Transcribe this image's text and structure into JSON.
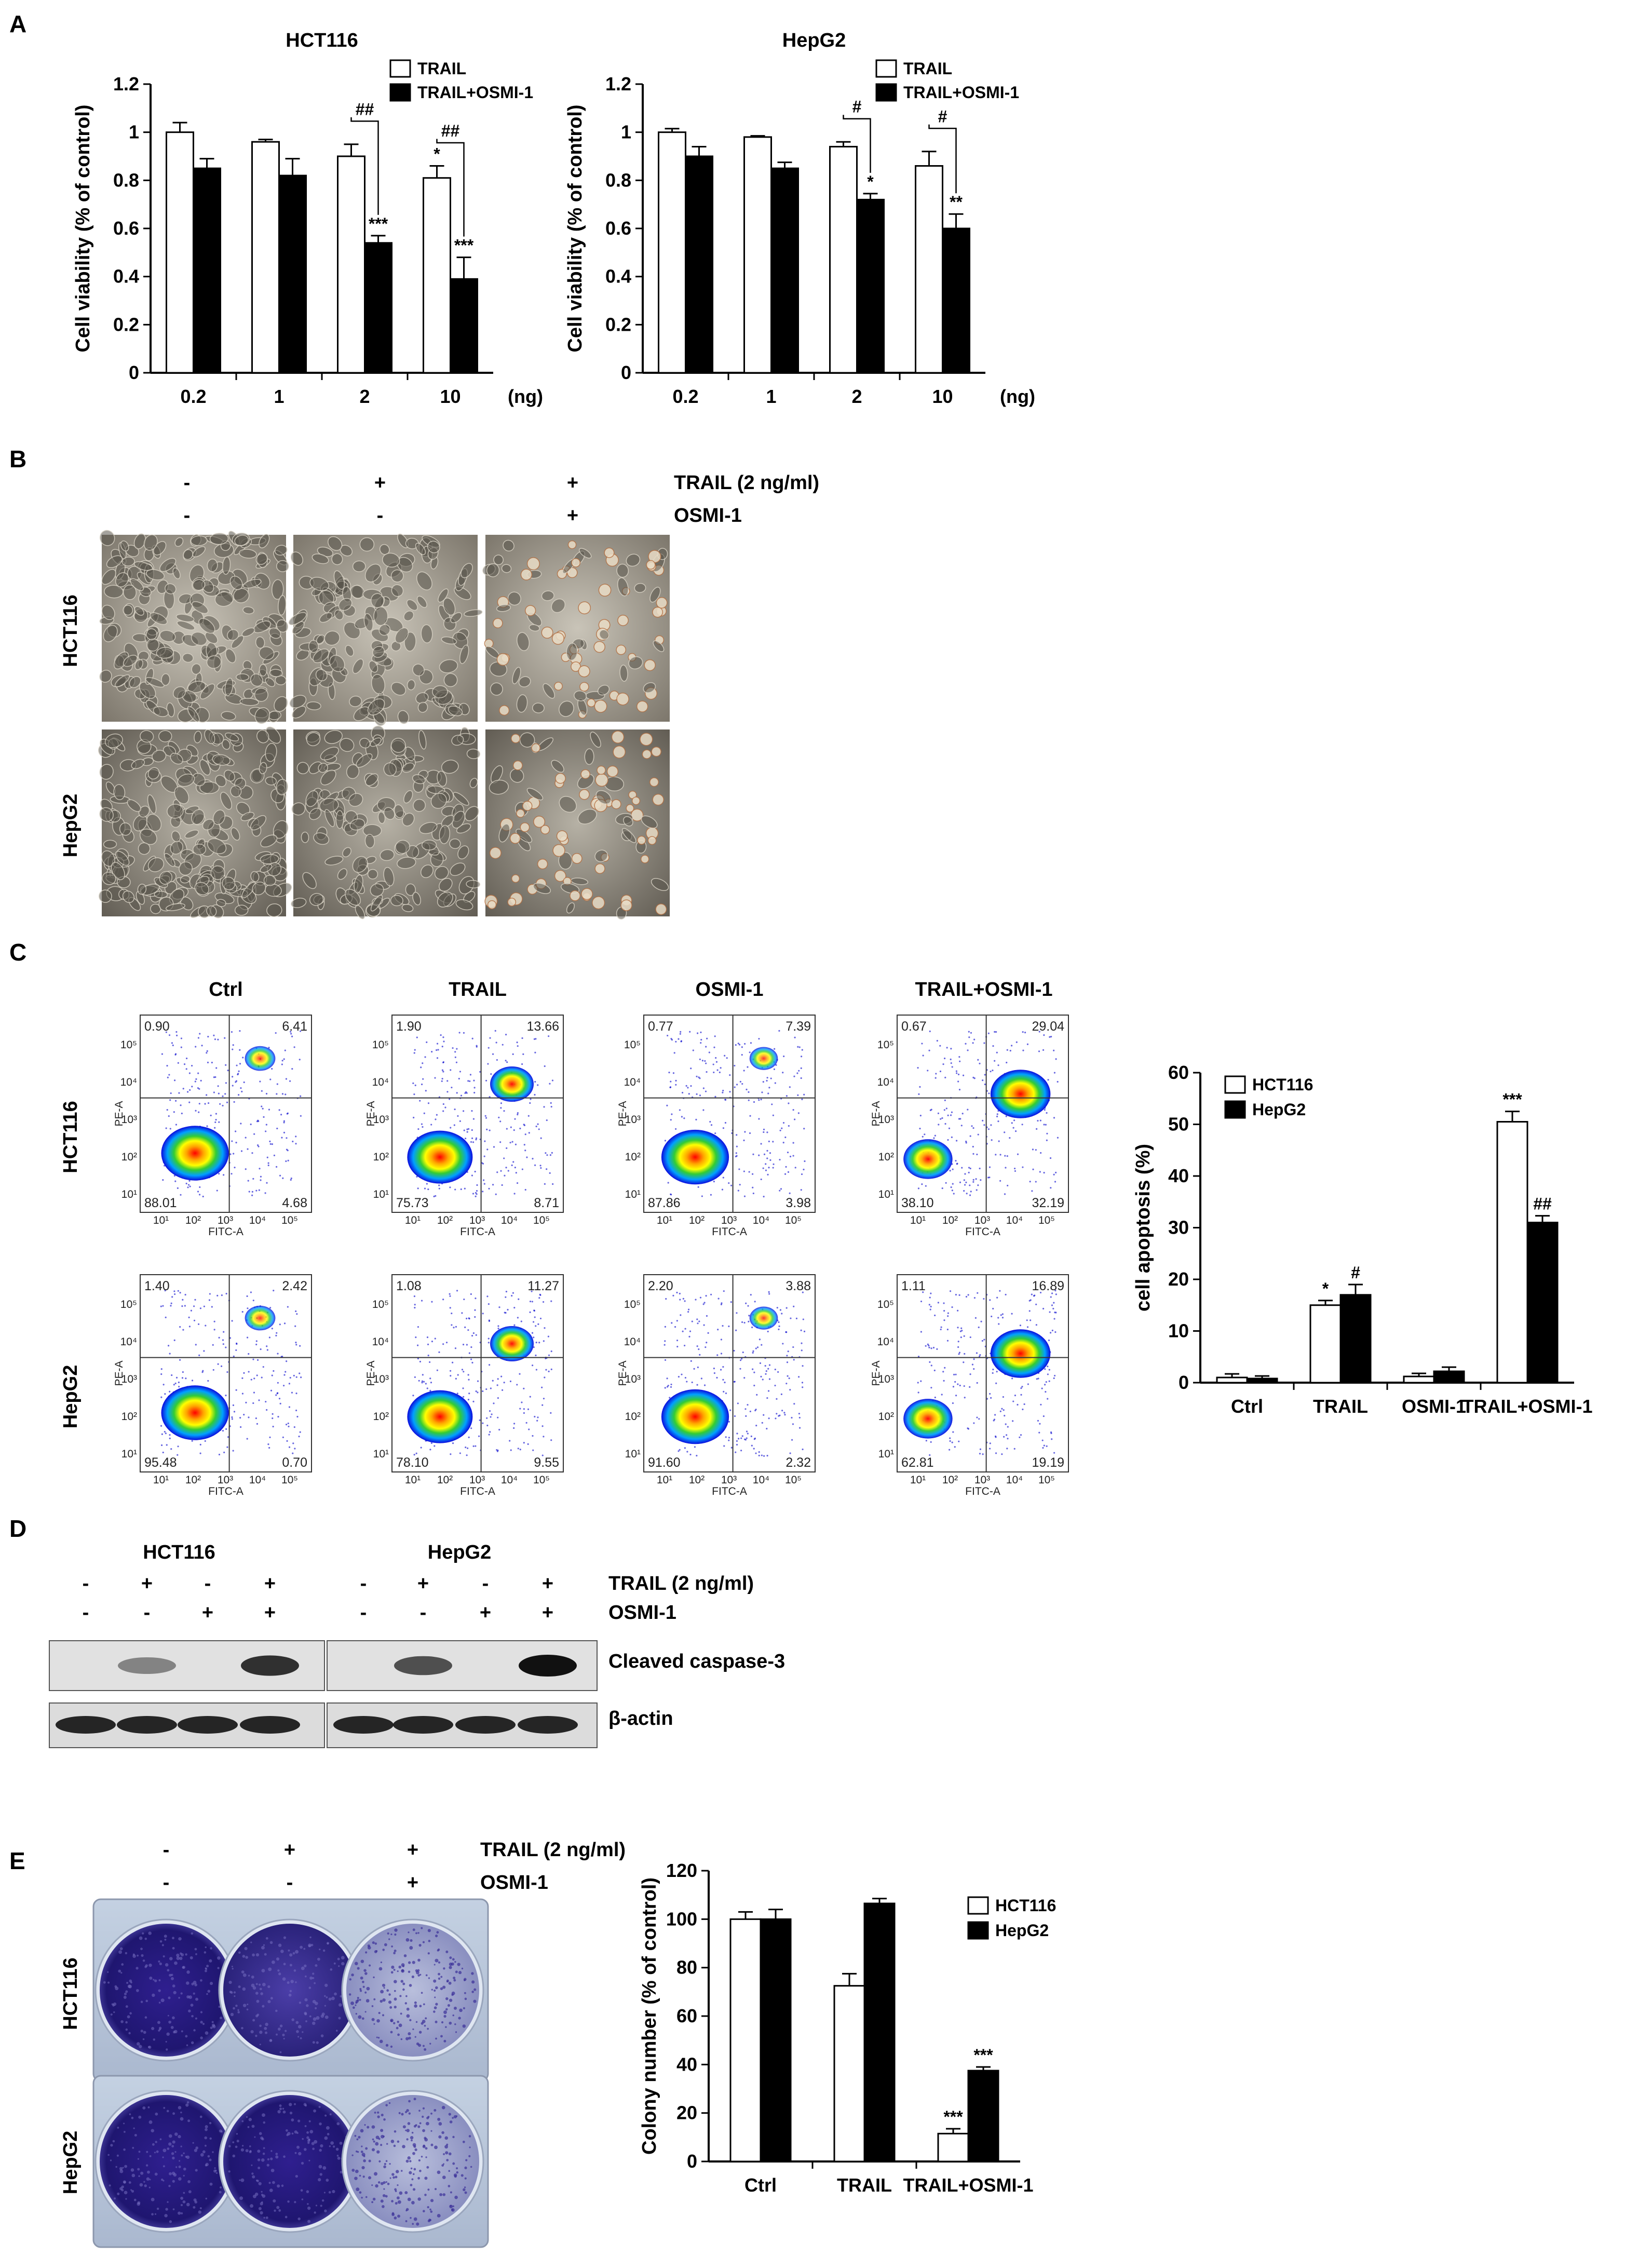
{
  "panel_labels": [
    "A",
    "B",
    "C",
    "D",
    "E"
  ],
  "panel_a": {
    "charts": [
      {
        "type": "bar",
        "title": "HCT116",
        "ylabel": "Cell viability (% of control)",
        "xunit": "(ng)",
        "categories": [
          "0.2",
          "1",
          "2",
          "10"
        ],
        "yticks": [
          "0",
          "0.2",
          "0.4",
          "0.6",
          "0.8",
          "1",
          "1.2"
        ],
        "ylim": [
          0,
          1.2
        ],
        "series": [
          {
            "name": "TRAIL",
            "color": "#ffffff",
            "values": [
              1.0,
              0.96,
              0.9,
              0.81
            ],
            "errors": [
              0.04,
              0.01,
              0.05,
              0.05
            ]
          },
          {
            "name": "TRAIL+OSMI-1",
            "color": "#000000",
            "values": [
              0.85,
              0.82,
              0.54,
              0.39
            ],
            "errors": [
              0.04,
              0.07,
              0.03,
              0.09
            ]
          }
        ],
        "annotations": {
          "open": [
            "",
            "",
            "",
            "*"
          ],
          "filled": [
            "",
            "",
            "***",
            "***"
          ],
          "brackets": [
            "",
            "",
            "##",
            "##"
          ]
        }
      },
      {
        "type": "bar",
        "title": "HepG2",
        "ylabel": "Cell viability (% of control)",
        "xunit": "(ng)",
        "categories": [
          "0.2",
          "1",
          "2",
          "10"
        ],
        "yticks": [
          "0",
          "0.2",
          "0.4",
          "0.6",
          "0.8",
          "1",
          "1.2"
        ],
        "ylim": [
          0,
          1.2
        ],
        "series": [
          {
            "name": "TRAIL",
            "color": "#ffffff",
            "values": [
              1.0,
              0.98,
              0.94,
              0.86
            ],
            "errors": [
              0.015,
              0.005,
              0.02,
              0.06
            ]
          },
          {
            "name": "TRAIL+OSMI-1",
            "color": "#000000",
            "values": [
              0.9,
              0.85,
              0.72,
              0.6
            ],
            "errors": [
              0.04,
              0.025,
              0.025,
              0.06
            ]
          }
        ],
        "annotations": {
          "open": [
            "",
            "",
            "",
            ""
          ],
          "filled": [
            "",
            "",
            "*",
            "**"
          ],
          "brackets": [
            "",
            "",
            "#",
            "#"
          ]
        }
      }
    ]
  },
  "panel_b": {
    "treatments": [
      {
        "label": "TRAIL (2 ng/ml)",
        "signs": [
          "-",
          "+",
          "+"
        ]
      },
      {
        "label": "OSMI-1",
        "signs": [
          "-",
          "-",
          "+"
        ]
      }
    ],
    "rows": [
      "HCT116",
      "HepG2"
    ]
  },
  "panel_c": {
    "columns": [
      "Ctrl",
      "TRAIL",
      "OSMI-1",
      "TRAIL+OSMI-1"
    ],
    "rows": [
      {
        "label": "HCT116",
        "quadrants": [
          [
            "0.90",
            "6.41",
            "88.01",
            "4.68"
          ],
          [
            "1.90",
            "13.66",
            "75.73",
            "8.71"
          ],
          [
            "0.77",
            "7.39",
            "87.86",
            "3.98"
          ],
          [
            "0.67",
            "29.04",
            "38.10",
            "32.19"
          ]
        ]
      },
      {
        "label": "HepG2",
        "quadrants": [
          [
            "1.40",
            "2.42",
            "95.48",
            "0.70"
          ],
          [
            "1.08",
            "11.27",
            "78.10",
            "9.55"
          ],
          [
            "2.20",
            "3.88",
            "91.60",
            "2.32"
          ],
          [
            "1.11",
            "16.89",
            "62.81",
            "19.19"
          ]
        ]
      }
    ],
    "flow_axes": {
      "x": "FITC-A",
      "y": "PE-A",
      "ticks": [
        "10¹",
        "10²",
        "10³",
        "10⁴",
        "10⁵"
      ]
    },
    "chart_data": {
      "type": "bar",
      "ylabel": "cell apoptosis (%)",
      "categories": [
        "Ctrl",
        "TRAIL",
        "OSMI-1",
        "TRAIL+OSMI-1"
      ],
      "yticks": [
        "0",
        "10",
        "20",
        "30",
        "40",
        "50",
        "60"
      ],
      "ylim": [
        0,
        60
      ],
      "legend": "top-left",
      "series": [
        {
          "name": "HCT116",
          "color": "#ffffff",
          "values": [
            1.0,
            15.0,
            1.2,
            50.5
          ],
          "errors": [
            0.7,
            0.9,
            0.6,
            2.0
          ]
        },
        {
          "name": "HepG2",
          "color": "#000000",
          "values": [
            0.8,
            17.0,
            2.2,
            31.0
          ],
          "errors": [
            0.5,
            2.0,
            0.8,
            1.3
          ]
        }
      ],
      "annotations": {
        "open": [
          "",
          "*",
          "",
          "***"
        ],
        "filled": [
          "",
          "#",
          "",
          "##"
        ]
      }
    }
  },
  "panel_d": {
    "groups": [
      "HCT116",
      "HepG2"
    ],
    "treatments": [
      {
        "label": "TRAIL (2 ng/ml)",
        "signs": [
          "-",
          "+",
          "-",
          "+"
        ]
      },
      {
        "label": "OSMI-1",
        "signs": [
          "-",
          "-",
          "+",
          "+"
        ]
      }
    ],
    "blots": [
      "Cleaved caspase-3",
      "β-actin"
    ]
  },
  "panel_e": {
    "treatments": [
      {
        "label": "TRAIL (2 ng/ml)",
        "signs": [
          "-",
          "+",
          "+"
        ]
      },
      {
        "label": "OSMI-1",
        "signs": [
          "-",
          "-",
          "+"
        ]
      }
    ],
    "rows": [
      "HCT116",
      "HepG2"
    ],
    "chart_data": {
      "type": "bar",
      "ylabel": "Colony number (% of control)",
      "categories": [
        "Ctrl",
        "TRAIL",
        "TRAIL+OSMI-1"
      ],
      "yticks": [
        "0",
        "20",
        "40",
        "60",
        "80",
        "100",
        "120"
      ],
      "ylim": [
        0,
        120
      ],
      "legend": "top-right",
      "series": [
        {
          "name": "HCT116",
          "color": "#ffffff",
          "values": [
            100,
            72.5,
            11.5
          ],
          "errors": [
            3,
            5,
            2
          ]
        },
        {
          "name": "HepG2",
          "color": "#000000",
          "values": [
            100,
            106.5,
            37.5
          ],
          "errors": [
            4,
            2,
            1.5
          ]
        }
      ],
      "annotations": {
        "open": [
          "",
          "",
          "***"
        ],
        "filled": [
          "",
          "",
          "***"
        ]
      }
    }
  }
}
